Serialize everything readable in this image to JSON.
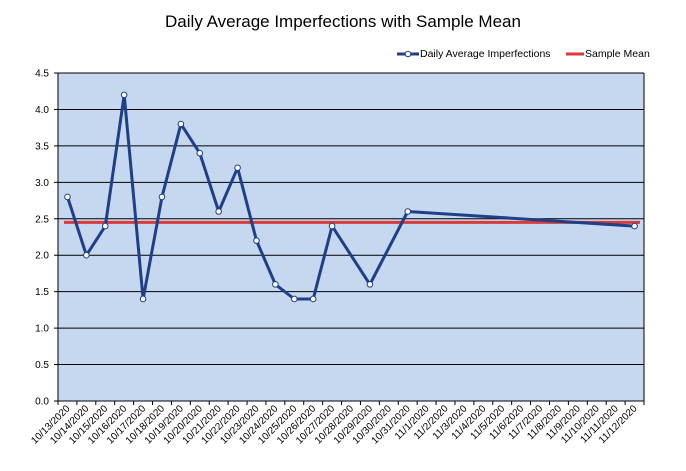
{
  "chart_data": {
    "type": "line",
    "title": "Daily Average Imperfections with Sample Mean",
    "xlabel": "",
    "ylabel": "",
    "ylim": [
      0,
      4.5
    ],
    "y_ticks": [
      "0.0",
      "0.5",
      "1.0",
      "1.5",
      "2.0",
      "2.5",
      "3.0",
      "3.5",
      "4.0",
      "4.5"
    ],
    "grid": "horizontal",
    "legend_position": "top-right",
    "categories": [
      "10/13/2020",
      "10/14/2020",
      "10/15/2020",
      "10/16/2020",
      "10/17/2020",
      "10/18/2020",
      "10/19/2020",
      "10/20/2020",
      "10/21/2020",
      "10/22/2020",
      "10/23/2020",
      "10/24/2020",
      "10/25/2020",
      "10/26/2020",
      "10/27/2020",
      "10/28/2020",
      "10/29/2020",
      "10/30/2020",
      "10/31/2020",
      "11/1/2020",
      "11/2/2020",
      "11/3/2020",
      "11/4/2020",
      "11/5/2020",
      "11/6/2020",
      "11/7/2020",
      "11/8/2020",
      "11/9/2020",
      "11/10/2020",
      "11/11/2020",
      "11/12/2020"
    ],
    "series": [
      {
        "name": "Daily Average Imperfections",
        "color": "#1F3F86",
        "marker": "circle",
        "points": [
          {
            "x": "10/13/2020",
            "y": 2.8
          },
          {
            "x": "10/14/2020",
            "y": 2.0
          },
          {
            "x": "10/15/2020",
            "y": 2.4
          },
          {
            "x": "10/16/2020",
            "y": 4.2
          },
          {
            "x": "10/17/2020",
            "y": 1.4
          },
          {
            "x": "10/18/2020",
            "y": 2.8
          },
          {
            "x": "10/19/2020",
            "y": 3.8
          },
          {
            "x": "10/20/2020",
            "y": 3.4
          },
          {
            "x": "10/21/2020",
            "y": 2.6
          },
          {
            "x": "10/22/2020",
            "y": 3.2
          },
          {
            "x": "10/23/2020",
            "y": 2.2
          },
          {
            "x": "10/24/2020",
            "y": 1.6
          },
          {
            "x": "10/25/2020",
            "y": 1.4
          },
          {
            "x": "10/26/2020",
            "y": 1.4
          },
          {
            "x": "10/27/2020",
            "y": 2.4
          },
          {
            "x": "10/29/2020",
            "y": 1.6
          },
          {
            "x": "10/31/2020",
            "y": 2.6
          },
          {
            "x": "11/12/2020",
            "y": 2.4
          }
        ]
      },
      {
        "name": "Sample Mean",
        "color": "#D93A3A",
        "constant": 2.45
      }
    ]
  },
  "colors": {
    "plot_background": "#C6D8F0",
    "gridline": "#000000"
  }
}
